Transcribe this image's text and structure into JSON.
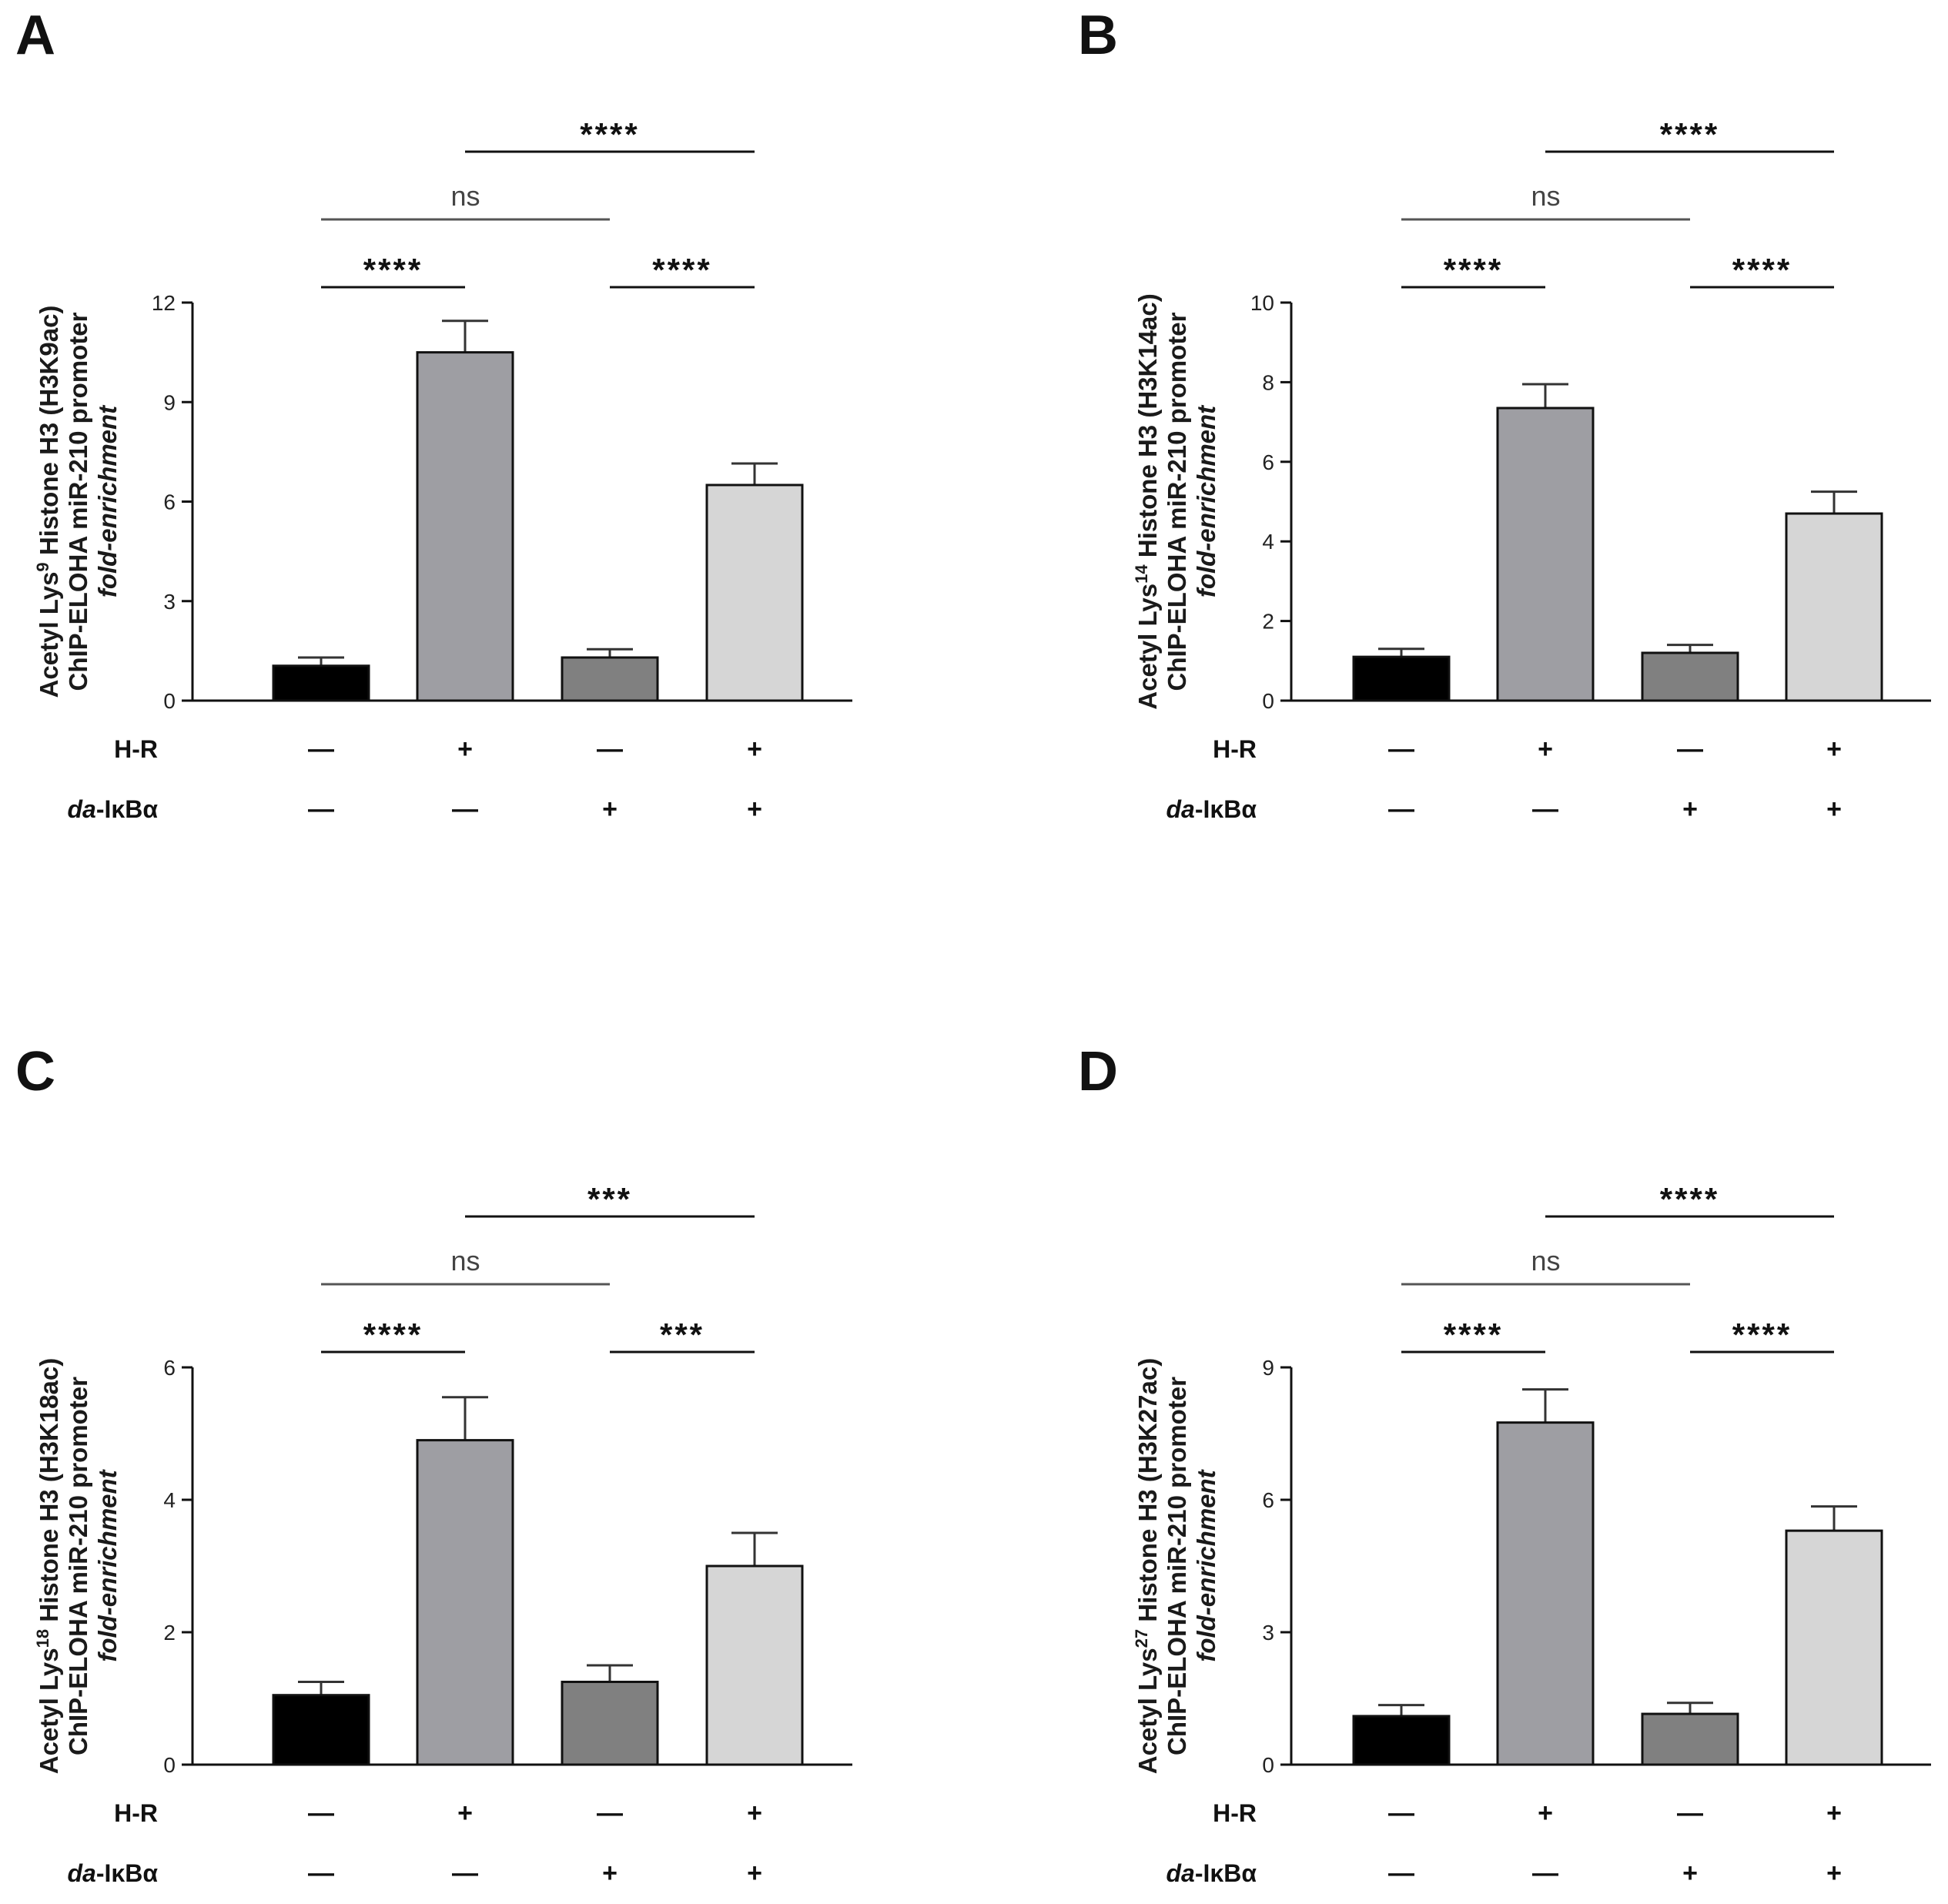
{
  "conditions": {
    "hr_label": "H-R",
    "ikb_prefix": "da",
    "ikb_suffix": "-IκBα",
    "hr_signs": [
      "—",
      "+",
      "—",
      "+"
    ],
    "ikb_signs": [
      "—",
      "—",
      "+",
      "+"
    ]
  },
  "chart_data": [
    {
      "panel": "A",
      "type": "bar",
      "ylabel_line1": "Acetyl Lys",
      "ylabel_sup": "9",
      "ylabel_line1_rest": " Histone H3 (H3K9ac)",
      "ylabel_line2": "ChIP-ELOHA  miR-210 promoter",
      "ylabel_line3": "fold-enrichment",
      "ylim": [
        0,
        12
      ],
      "yticks": [
        0,
        3,
        6,
        9,
        12
      ],
      "ytick_labels": [
        "0",
        "3",
        "6",
        "9",
        "12"
      ],
      "categories": [
        "H-R − / da-IκBα −",
        "H-R + / da-IκBα −",
        "H-R − / da-IκBα +",
        "H-R + / da-IκBα +"
      ],
      "values": [
        1.05,
        10.5,
        1.3,
        6.5
      ],
      "errors": [
        0.25,
        0.95,
        0.25,
        0.65
      ],
      "colors": [
        "#000000",
        "#9e9ea3",
        "#808080",
        "#d6d6d6"
      ],
      "comparisons": [
        {
          "from": 0,
          "to": 1,
          "label": "****"
        },
        {
          "from": 2,
          "to": 3,
          "label": "****"
        },
        {
          "from": 0,
          "to": 2,
          "label": "ns"
        },
        {
          "from": 1,
          "to": 3,
          "label": "****"
        }
      ]
    },
    {
      "panel": "B",
      "type": "bar",
      "ylabel_line1": "Acetyl Lys",
      "ylabel_sup": "14",
      "ylabel_line1_rest": " Histone H3 (H3K14ac)",
      "ylabel_line2": "ChIP-ELOHA  miR-210 promoter",
      "ylabel_line3": "fold-enrichment",
      "ylim": [
        0,
        10
      ],
      "yticks": [
        0,
        2,
        4,
        6,
        8,
        10
      ],
      "ytick_labels": [
        "0",
        "2",
        "4",
        "6",
        "8",
        "10"
      ],
      "categories": [
        "H-R − / da-IκBα −",
        "H-R + / da-IκBα −",
        "H-R − / da-IκBα +",
        "H-R + / da-IκBα +"
      ],
      "values": [
        1.1,
        7.35,
        1.2,
        4.7
      ],
      "errors": [
        0.2,
        0.6,
        0.2,
        0.55
      ],
      "colors": [
        "#000000",
        "#9e9ea3",
        "#808080",
        "#d6d6d6"
      ],
      "comparisons": [
        {
          "from": 0,
          "to": 1,
          "label": "****"
        },
        {
          "from": 2,
          "to": 3,
          "label": "****"
        },
        {
          "from": 0,
          "to": 2,
          "label": "ns"
        },
        {
          "from": 1,
          "to": 3,
          "label": "****"
        }
      ]
    },
    {
      "panel": "C",
      "type": "bar",
      "ylabel_line1": "Acetyl Lys",
      "ylabel_sup": "18",
      "ylabel_line1_rest": " Histone H3 (H3K18ac)",
      "ylabel_line2": "ChIP-ELOHA  miR-210 promoter",
      "ylabel_line3": "fold-enrichment",
      "ylim": [
        0,
        6
      ],
      "yticks": [
        0,
        2,
        4,
        6
      ],
      "ytick_labels": [
        "0",
        "2",
        "4",
        "6"
      ],
      "categories": [
        "H-R − / da-IκBα −",
        "H-R + / da-IκBα −",
        "H-R − / da-IκBα +",
        "H-R + / da-IκBα +"
      ],
      "values": [
        1.05,
        4.9,
        1.25,
        3.0
      ],
      "errors": [
        0.2,
        0.65,
        0.25,
        0.5
      ],
      "colors": [
        "#000000",
        "#9e9ea3",
        "#808080",
        "#d6d6d6"
      ],
      "comparisons": [
        {
          "from": 0,
          "to": 1,
          "label": "****"
        },
        {
          "from": 2,
          "to": 3,
          "label": "***"
        },
        {
          "from": 0,
          "to": 2,
          "label": "ns"
        },
        {
          "from": 1,
          "to": 3,
          "label": "***"
        }
      ]
    },
    {
      "panel": "D",
      "type": "bar",
      "ylabel_line1": "Acetyl Lys",
      "ylabel_sup": "27",
      "ylabel_line1_rest": " Histone H3 (H3K27ac)",
      "ylabel_line2": "ChIP-ELOHA  miR-210 promoter",
      "ylabel_line3": "fold-enrichment",
      "ylim": [
        0,
        9
      ],
      "yticks": [
        0,
        3,
        6,
        9
      ],
      "ytick_labels": [
        "0",
        "3",
        "6",
        "9"
      ],
      "categories": [
        "H-R − / da-IκBα −",
        "H-R + / da-IκBα −",
        "H-R − / da-IκBα +",
        "H-R + / da-IκBα +"
      ],
      "values": [
        1.1,
        7.75,
        1.15,
        5.3
      ],
      "errors": [
        0.25,
        0.75,
        0.25,
        0.55
      ],
      "colors": [
        "#000000",
        "#9e9ea3",
        "#808080",
        "#d6d6d6"
      ],
      "comparisons": [
        {
          "from": 0,
          "to": 1,
          "label": "****"
        },
        {
          "from": 2,
          "to": 3,
          "label": "****"
        },
        {
          "from": 0,
          "to": 2,
          "label": "ns"
        },
        {
          "from": 1,
          "to": 3,
          "label": "****"
        }
      ]
    }
  ]
}
